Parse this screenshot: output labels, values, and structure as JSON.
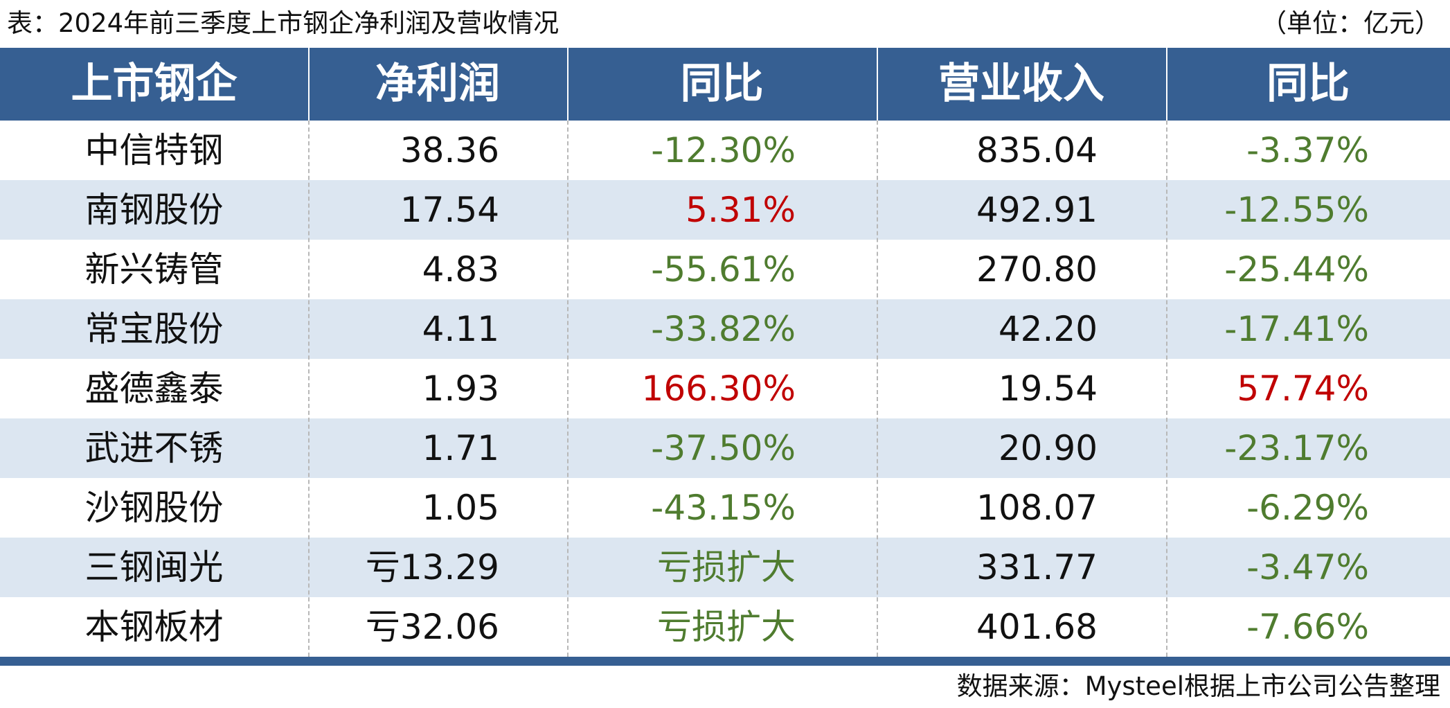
{
  "header": {
    "title": "表：2024年前三季度上市钢企净利润及营收情况",
    "unit": "（单位：亿元）"
  },
  "table": {
    "columns": [
      "上市钢企",
      "净利润",
      "同比",
      "营业收入",
      "同比"
    ],
    "rows": [
      [
        "中信特钢",
        "38.36",
        "-12.30%",
        "835.04",
        "-3.37%"
      ],
      [
        "南钢股份",
        "17.54",
        "5.31%",
        "492.91",
        "-12.55%"
      ],
      [
        "新兴铸管",
        "4.83",
        "-55.61%",
        "270.80",
        "-25.44%"
      ],
      [
        "常宝股份",
        "4.11",
        "-33.82%",
        "42.20",
        "-17.41%"
      ],
      [
        "盛德鑫泰",
        "1.93",
        "166.30%",
        "19.54",
        "57.74%"
      ],
      [
        "武进不锈",
        "1.71",
        "-37.50%",
        "20.90",
        "-23.17%"
      ],
      [
        "沙钢股份",
        "1.05",
        "-43.15%",
        "108.07",
        "-6.29%"
      ],
      [
        "三钢闽光",
        "亏13.29",
        "亏损扩大",
        "331.77",
        "-3.47%"
      ],
      [
        "本钢板材",
        "亏32.06",
        "亏损扩大",
        "401.68",
        "-7.66%"
      ]
    ],
    "header_color": "#365f92",
    "stripe_color": "#dce6f1",
    "rise_color": "#c00000",
    "fall_color": "#4f7c2f"
  },
  "footer": {
    "source": "数据来源：Mysteel根据上市公司公告整理"
  }
}
